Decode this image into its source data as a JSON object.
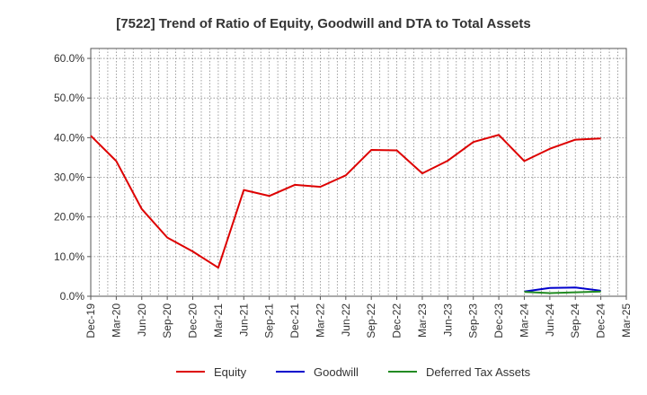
{
  "chart_data": {
    "type": "line",
    "title": "[7522]  Trend of Ratio of Equity, Goodwill and DTA to Total Assets",
    "xlabel": "",
    "ylabel": "",
    "ylim": [
      0,
      0.625
    ],
    "yticks": [
      0.0,
      0.1,
      0.2,
      0.3,
      0.4,
      0.5,
      0.6
    ],
    "ytick_labels": [
      "0.0%",
      "10.0%",
      "20.0%",
      "30.0%",
      "40.0%",
      "50.0%",
      "60.0%"
    ],
    "x": [
      "Dec-19",
      "Mar-20",
      "Jun-20",
      "Sep-20",
      "Dec-20",
      "Mar-21",
      "Jun-21",
      "Sep-21",
      "Dec-21",
      "Mar-22",
      "Jun-22",
      "Sep-22",
      "Dec-22",
      "Mar-23",
      "Jun-23",
      "Sep-23",
      "Dec-23",
      "Mar-24",
      "Jun-24",
      "Sep-24",
      "Dec-24",
      "Mar-25"
    ],
    "grid": true,
    "legend_position": "bottom",
    "series": [
      {
        "name": "Equity",
        "color": "#dd0000",
        "values": [
          0.405,
          0.341,
          0.22,
          0.148,
          0.113,
          0.072,
          0.268,
          0.253,
          0.281,
          0.276,
          0.305,
          0.369,
          0.368,
          0.31,
          0.342,
          0.389,
          0.407,
          0.341,
          0.372,
          0.395,
          0.398,
          null
        ]
      },
      {
        "name": "Goodwill",
        "color": "#0000cc",
        "values": [
          null,
          null,
          null,
          null,
          null,
          null,
          null,
          null,
          null,
          null,
          null,
          null,
          null,
          null,
          null,
          null,
          null,
          0.012,
          0.021,
          0.022,
          0.014,
          null
        ]
      },
      {
        "name": "Deferred Tax Assets",
        "color": "#228b22",
        "values": [
          null,
          null,
          null,
          null,
          null,
          null,
          null,
          null,
          null,
          null,
          null,
          null,
          null,
          null,
          null,
          null,
          null,
          0.011,
          0.008,
          0.01,
          0.012,
          null
        ]
      }
    ]
  }
}
